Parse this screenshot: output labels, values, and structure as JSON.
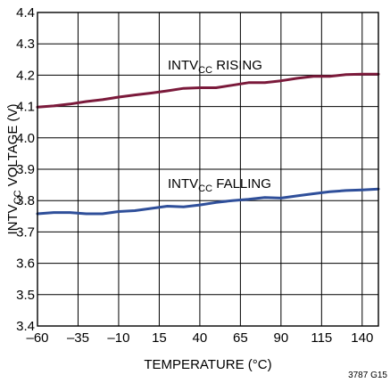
{
  "chart_data": {
    "type": "line",
    "title": "",
    "xlabel": "TEMPERATURE (°C)",
    "ylabel": {
      "main": "INTV",
      "sub": "CC",
      "rest": " VOLTAGE (V)"
    },
    "xlim": [
      -60,
      150
    ],
    "ylim": [
      3.4,
      4.4
    ],
    "x_ticks": [
      -60,
      -35,
      -10,
      15,
      40,
      65,
      90,
      115,
      140
    ],
    "x_tick_labels": [
      "–60",
      "–35",
      "–10",
      "15",
      "40",
      "65",
      "90",
      "115",
      "140"
    ],
    "y_ticks": [
      3.4,
      3.5,
      3.6,
      3.7,
      3.8,
      3.9,
      4.0,
      4.1,
      4.2,
      4.3,
      4.4
    ],
    "y_tick_labels": [
      "3.4",
      "3.5",
      "3.6",
      "3.7",
      "3.8",
      "3.9",
      "4.0",
      "4.1",
      "4.2",
      "4.3",
      "4.4"
    ],
    "grid": true,
    "series": [
      {
        "name": {
          "main": "INTV",
          "sub": "CC",
          "rest": " RISING"
        },
        "color": "#7b1a3b",
        "x": [
          -60,
          -50,
          -40,
          -30,
          -20,
          -10,
          0,
          10,
          20,
          30,
          40,
          50,
          60,
          70,
          80,
          90,
          100,
          110,
          120,
          130,
          140,
          150
        ],
        "y": [
          4.098,
          4.102,
          4.108,
          4.116,
          4.122,
          4.13,
          4.137,
          4.143,
          4.15,
          4.158,
          4.16,
          4.16,
          4.168,
          4.176,
          4.176,
          4.182,
          4.19,
          4.196,
          4.196,
          4.202,
          4.203,
          4.203
        ]
      },
      {
        "name": {
          "main": "INTV",
          "sub": "CC",
          "rest": " FALLING"
        },
        "color": "#2f4f9a",
        "x": [
          -60,
          -50,
          -40,
          -30,
          -20,
          -10,
          0,
          10,
          20,
          30,
          40,
          50,
          60,
          70,
          80,
          90,
          100,
          110,
          120,
          130,
          140,
          150
        ],
        "y": [
          3.758,
          3.762,
          3.762,
          3.758,
          3.758,
          3.765,
          3.768,
          3.775,
          3.782,
          3.78,
          3.786,
          3.794,
          3.8,
          3.804,
          3.81,
          3.808,
          3.815,
          3.822,
          3.828,
          3.832,
          3.834,
          3.837
        ]
      }
    ],
    "annotations": [
      "3787 G15"
    ]
  }
}
